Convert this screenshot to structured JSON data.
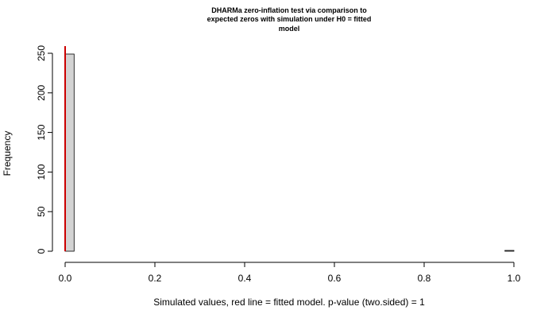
{
  "chart_data": {
    "type": "bar",
    "title_lines": [
      "DHARMa zero-inflation test via comparison to",
      "expected zeros with simulation under H0 = fitted",
      "model"
    ],
    "xlabel": "Simulated values, red line = fitted model. p-value (two.sided) = 1",
    "ylabel": "Frequency",
    "xlim": [
      0,
      1
    ],
    "ylim": [
      0,
      250
    ],
    "x_ticks": [
      "0.0",
      "0.2",
      "0.4",
      "0.6",
      "0.8",
      "1.0"
    ],
    "y_ticks": [
      "0",
      "50",
      "100",
      "150",
      "200",
      "250"
    ],
    "bins": {
      "width": 0.02,
      "starts": [
        0.0,
        0.98
      ],
      "counts": [
        249,
        1
      ]
    },
    "observed_value": 0,
    "colors": {
      "bar_fill": "#d3d3d3",
      "observed_line": "#cc0000"
    },
    "grid": false
  }
}
